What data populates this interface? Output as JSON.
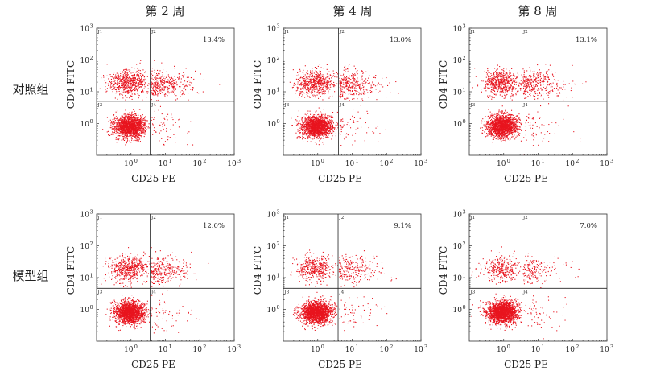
{
  "columns": [
    "第 2 周",
    "第 4 周",
    "第 8 周"
  ],
  "rows": [
    "对照组",
    "模型组"
  ],
  "xlabel": "CD25 PE",
  "ylabel": "CD4 FITC",
  "tick_base": "10",
  "tick_exponents": [
    "0",
    "1",
    "2",
    "3"
  ],
  "quadrant_labels": [
    "J1",
    "J2",
    "J3",
    "J4"
  ],
  "colors": {
    "dot": "#e8141e",
    "axis": "#333333"
  },
  "chart_data": [
    {
      "type": "scatter",
      "row": "对照组",
      "column": "第 2 周",
      "xscale": "log",
      "yscale": "log",
      "xlim": [
        0.1,
        1000
      ],
      "ylim": [
        0.1,
        1000
      ],
      "gate_x": 3.6,
      "gate_y": 5.0,
      "q2_label": "13.4%",
      "q2_percent": 13.4
    },
    {
      "type": "scatter",
      "row": "对照组",
      "column": "第 4 周",
      "xscale": "log",
      "yscale": "log",
      "xlim": [
        0.1,
        1000
      ],
      "ylim": [
        0.1,
        1000
      ],
      "gate_x": 4.0,
      "gate_y": 5.0,
      "q2_label": "13.0%",
      "q2_percent": 13.0
    },
    {
      "type": "scatter",
      "row": "对照组",
      "column": "第 8 周",
      "xscale": "log",
      "yscale": "log",
      "xlim": [
        0.1,
        1000
      ],
      "ylim": [
        0.1,
        1000
      ],
      "gate_x": 3.4,
      "gate_y": 5.0,
      "q2_label": "13.1%",
      "q2_percent": 13.1
    },
    {
      "type": "scatter",
      "row": "模型组",
      "column": "第 2 周",
      "xscale": "log",
      "yscale": "log",
      "xlim": [
        0.1,
        1000
      ],
      "ylim": [
        0.1,
        1000
      ],
      "gate_x": 3.6,
      "gate_y": 4.6,
      "q2_label": "12.0%",
      "q2_percent": 12.0
    },
    {
      "type": "scatter",
      "row": "模型组",
      "column": "第 4 周",
      "xscale": "log",
      "yscale": "log",
      "xlim": [
        0.1,
        1000
      ],
      "ylim": [
        0.1,
        1000
      ],
      "gate_x": 3.9,
      "gate_y": 4.6,
      "q2_label": "9.1%",
      "q2_percent": 9.1
    },
    {
      "type": "scatter",
      "row": "模型组",
      "column": "第 8 周",
      "xscale": "log",
      "yscale": "log",
      "xlim": [
        0.1,
        1000
      ],
      "ylim": [
        0.1,
        1000
      ],
      "gate_x": 3.4,
      "gate_y": 4.6,
      "q2_label": "7.0%",
      "q2_percent": 7.0
    }
  ]
}
